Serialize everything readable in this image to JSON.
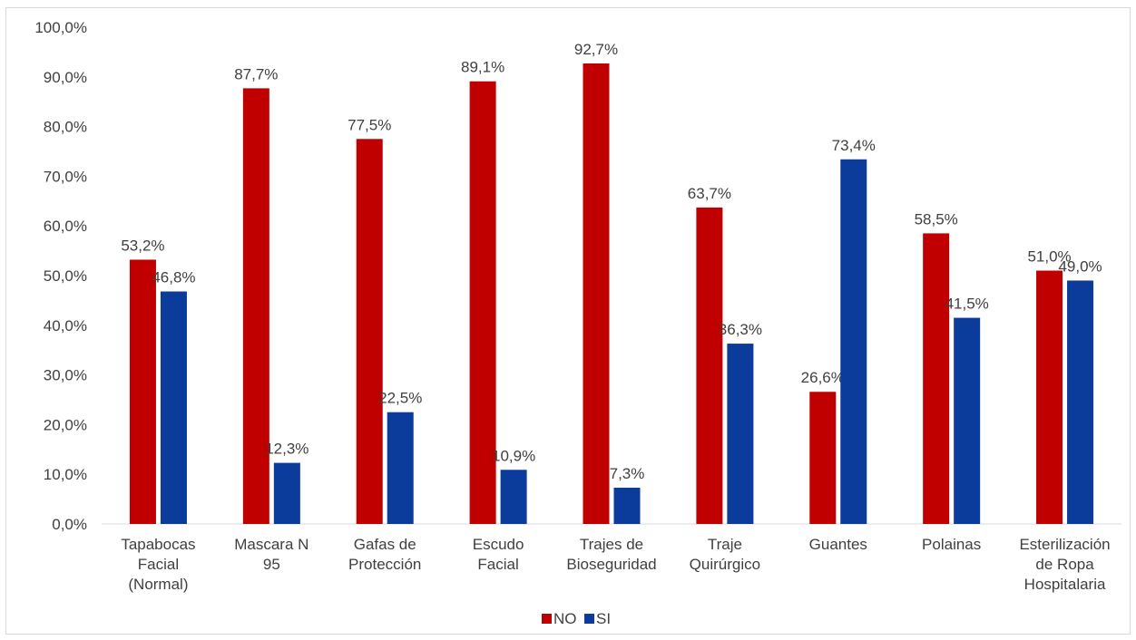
{
  "chart_data": {
    "type": "bar",
    "categories": [
      [
        "Tapabocas",
        "Facial",
        "(Normal)"
      ],
      [
        "Mascara N",
        "95"
      ],
      [
        "Gafas de",
        "Protección"
      ],
      [
        "Escudo",
        "Facial"
      ],
      [
        "Trajes de",
        "Bioseguridad"
      ],
      [
        "Traje",
        "Quirúrgico"
      ],
      [
        "Guantes"
      ],
      [
        "Polainas"
      ],
      [
        "Esterilización",
        "de Ropa",
        "Hospitalaria"
      ]
    ],
    "series": [
      {
        "name": "NO",
        "color": "#C00000",
        "values": [
          53.2,
          87.7,
          77.5,
          89.1,
          92.7,
          63.7,
          26.6,
          58.5,
          51.0
        ],
        "labels": [
          "53,2%",
          "87,7%",
          "77,5%",
          "89,1%",
          "92,7%",
          "63,7%",
          "26,6%",
          "58,5%",
          "51,0%"
        ]
      },
      {
        "name": "SI",
        "color": "#0B3B9B",
        "values": [
          46.8,
          12.3,
          22.5,
          10.9,
          7.3,
          36.3,
          73.4,
          41.5,
          49.0
        ],
        "labels": [
          "46,8%",
          "12,3%",
          "22,5%",
          "10,9%",
          "7,3%",
          "36,3%",
          "73,4%",
          "41,5%",
          "49,0%"
        ]
      }
    ],
    "y_ticks": [
      "0,0%",
      "10,0%",
      "20,0%",
      "30,0%",
      "40,0%",
      "50,0%",
      "60,0%",
      "70,0%",
      "80,0%",
      "90,0%",
      "100,0%"
    ],
    "ylim": [
      0,
      100
    ],
    "grid": false,
    "legend": "bottom",
    "title": "",
    "xlabel": "",
    "ylabel": ""
  }
}
